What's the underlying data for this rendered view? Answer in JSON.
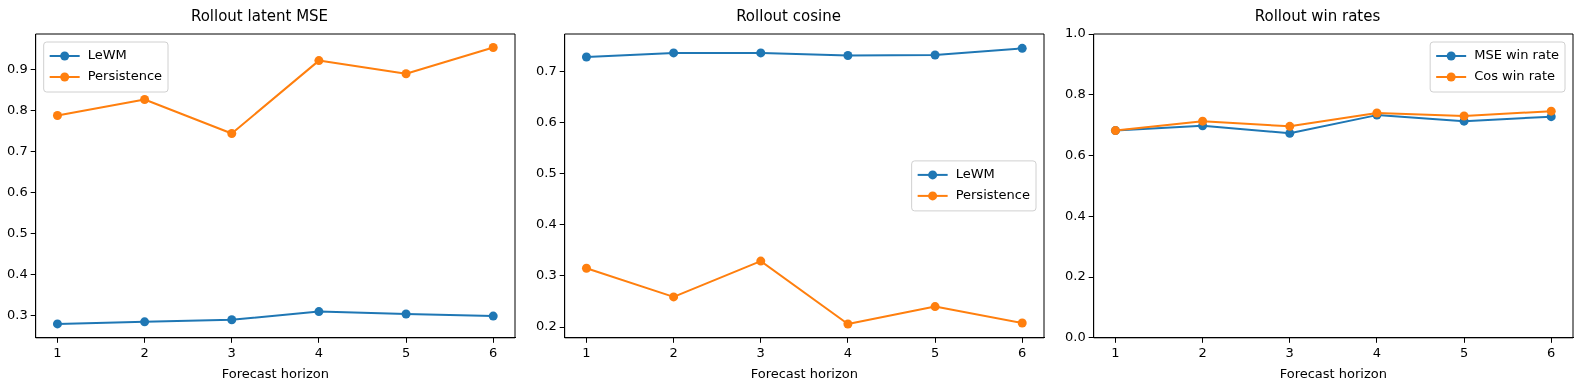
{
  "chart_data": [
    {
      "type": "line",
      "title": "Rollout latent MSE",
      "xlabel": "Forecast horizon",
      "x": [
        1,
        2,
        3,
        4,
        5,
        6
      ],
      "xlim": [
        0.75,
        6.25
      ],
      "xticks": [
        1,
        2,
        3,
        4,
        5,
        6
      ],
      "ylim": [
        0.245,
        0.987
      ],
      "yticks": [
        0.3,
        0.4,
        0.5,
        0.6,
        0.7,
        0.8,
        0.9
      ],
      "legend": "top left",
      "marker": "circle",
      "grid": false,
      "series": [
        {
          "name": "LeWM",
          "color": "#1f77b4",
          "values": [
            0.279,
            0.284,
            0.289,
            0.309,
            0.303,
            0.298
          ]
        },
        {
          "name": "Persistence",
          "color": "#ff7f0e",
          "values": [
            0.788,
            0.827,
            0.744,
            0.922,
            0.89,
            0.954
          ]
        }
      ]
    },
    {
      "type": "line",
      "title": "Rollout cosine",
      "xlabel": "Forecast horizon",
      "x": [
        1,
        2,
        3,
        4,
        5,
        6
      ],
      "xlim": [
        0.75,
        6.25
      ],
      "xticks": [
        1,
        2,
        3,
        4,
        5,
        6
      ],
      "ylim": [
        0.179,
        0.773
      ],
      "yticks": [
        0.2,
        0.3,
        0.4,
        0.5,
        0.6,
        0.7
      ],
      "legend": "right",
      "marker": "circle",
      "grid": false,
      "series": [
        {
          "name": "LeWM",
          "color": "#1f77b4",
          "values": [
            0.728,
            0.736,
            0.736,
            0.731,
            0.732,
            0.745
          ]
        },
        {
          "name": "Persistence",
          "color": "#ff7f0e",
          "values": [
            0.315,
            0.259,
            0.329,
            0.206,
            0.24,
            0.208
          ]
        }
      ]
    },
    {
      "type": "line",
      "title": "Rollout win rates",
      "xlabel": "Forecast horizon",
      "x": [
        1,
        2,
        3,
        4,
        5,
        6
      ],
      "xlim": [
        0.75,
        6.25
      ],
      "xticks": [
        1,
        2,
        3,
        4,
        5,
        6
      ],
      "ylim": [
        0,
        1
      ],
      "yticks": [
        {
          "value": 0,
          "label": "0.0"
        },
        0.2,
        0.4,
        0.6,
        0.8,
        {
          "value": 1,
          "label": "1.0"
        }
      ],
      "legend": "top right",
      "marker": "circle",
      "grid": false,
      "series": [
        {
          "name": "MSE win rate",
          "color": "#1f77b4",
          "values": [
            0.682,
            0.698,
            0.673,
            0.733,
            0.713,
            0.728
          ]
        },
        {
          "name": "Cos win rate",
          "color": "#ff7f0e",
          "values": [
            0.682,
            0.713,
            0.696,
            0.74,
            0.73,
            0.746
          ]
        }
      ]
    }
  ]
}
